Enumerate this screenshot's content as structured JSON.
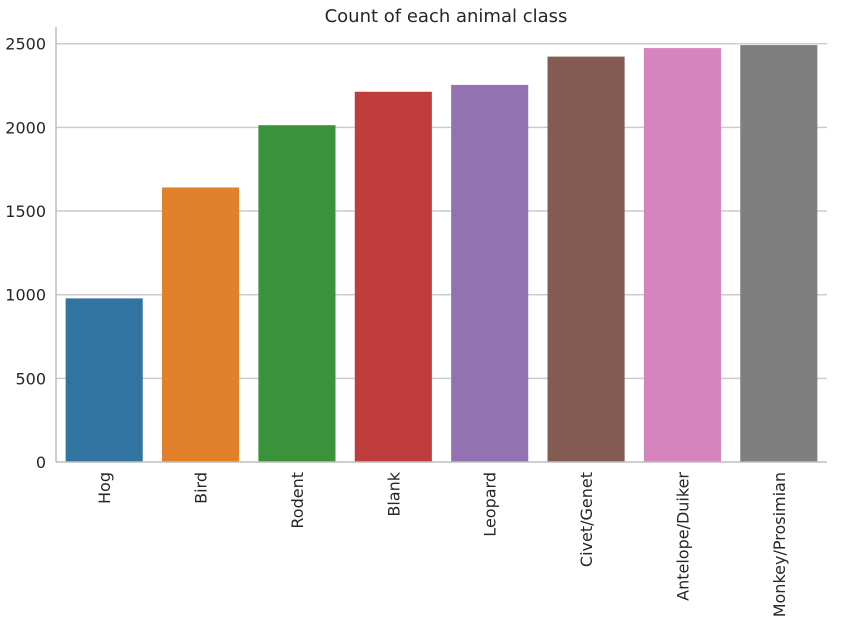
{
  "chart_data": {
    "type": "bar",
    "title": "Count of each animal class",
    "xlabel": "",
    "ylabel": "",
    "categories": [
      "Hog",
      "Bird",
      "Rodent",
      "Blank",
      "Leopard",
      "Civet/Genet",
      "Antelope/Duiker",
      "Monkey/Prosimian"
    ],
    "values": [
      978,
      1641,
      2013,
      2213,
      2254,
      2423,
      2474,
      2492
    ],
    "colors": [
      "#3274a1",
      "#e1812c",
      "#3a923a",
      "#c03d3e",
      "#9372b2",
      "#845b53",
      "#d684bd",
      "#7f7f7f"
    ],
    "ylim": [
      0,
      2600
    ],
    "yticks": [
      0,
      500,
      1000,
      1500,
      2000,
      2500
    ],
    "grid": "y",
    "legend": "none"
  }
}
